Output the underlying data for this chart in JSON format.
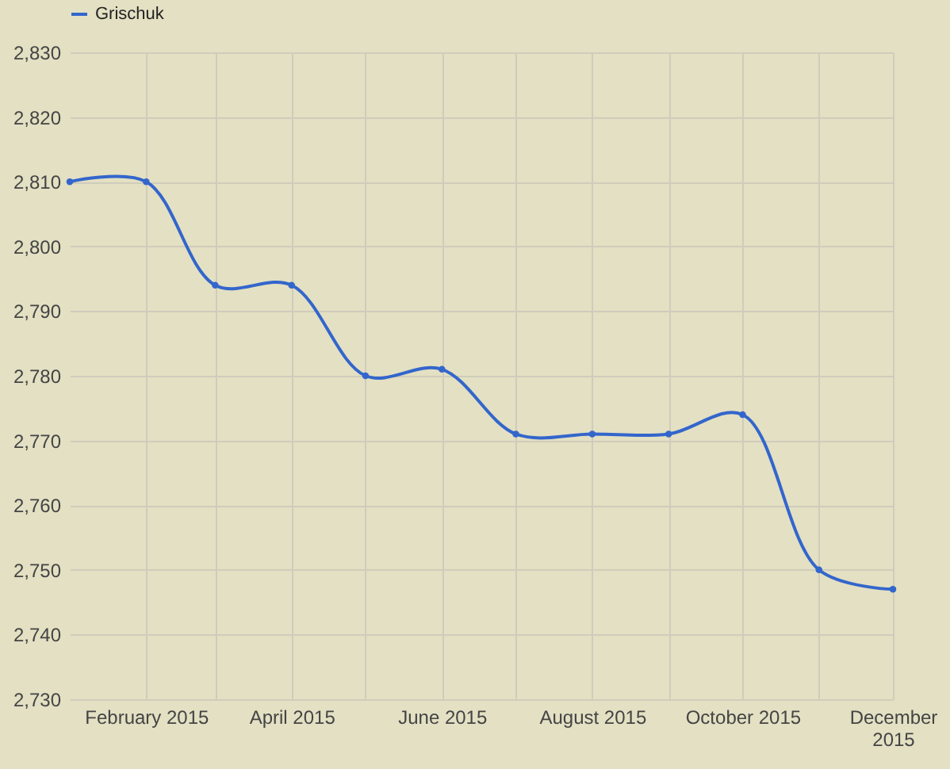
{
  "chart_data": {
    "type": "line",
    "x": [
      "2015-01",
      "2015-02",
      "2015-03",
      "2015-04",
      "2015-05",
      "2015-06",
      "2015-07",
      "2015-08",
      "2015-09",
      "2015-10",
      "2015-11",
      "2015-12"
    ],
    "series": [
      {
        "name": "Grischuk",
        "color": "#3366cc",
        "values": [
          2810,
          2810,
          2794,
          2794,
          2780,
          2781,
          2771,
          2771,
          2771,
          2774,
          2750,
          2747
        ]
      }
    ],
    "xlim": [
      "2015-01",
      "2015-12"
    ],
    "xticks": [
      {
        "value": "2015-02",
        "label": "February 2015"
      },
      {
        "value": "2015-03",
        "label": null
      },
      {
        "value": "2015-04",
        "label": "April 2015"
      },
      {
        "value": "2015-05",
        "label": null
      },
      {
        "value": "2015-06",
        "label": "June 2015"
      },
      {
        "value": "2015-07",
        "label": null
      },
      {
        "value": "2015-08",
        "label": "August 2015"
      },
      {
        "value": "2015-09",
        "label": null
      },
      {
        "value": "2015-10",
        "label": "October 2015"
      },
      {
        "value": "2015-11",
        "label": null
      },
      {
        "value": "2015-12",
        "label": "December 2015"
      }
    ],
    "ylim": [
      2730,
      2830
    ],
    "yticks": [
      {
        "value": 2730,
        "label": "2,730"
      },
      {
        "value": 2740,
        "label": "2,740"
      },
      {
        "value": 2750,
        "label": "2,750"
      },
      {
        "value": 2760,
        "label": "2,760"
      },
      {
        "value": 2770,
        "label": "2,770"
      },
      {
        "value": 2780,
        "label": "2,780"
      },
      {
        "value": 2790,
        "label": "2,790"
      },
      {
        "value": 2800,
        "label": "2,800"
      },
      {
        "value": 2810,
        "label": "2,810"
      },
      {
        "value": 2820,
        "label": "2,820"
      },
      {
        "value": 2830,
        "label": "2,830"
      }
    ],
    "grid": true,
    "legend": "top left",
    "marker": "circle",
    "line_style": "solid"
  }
}
